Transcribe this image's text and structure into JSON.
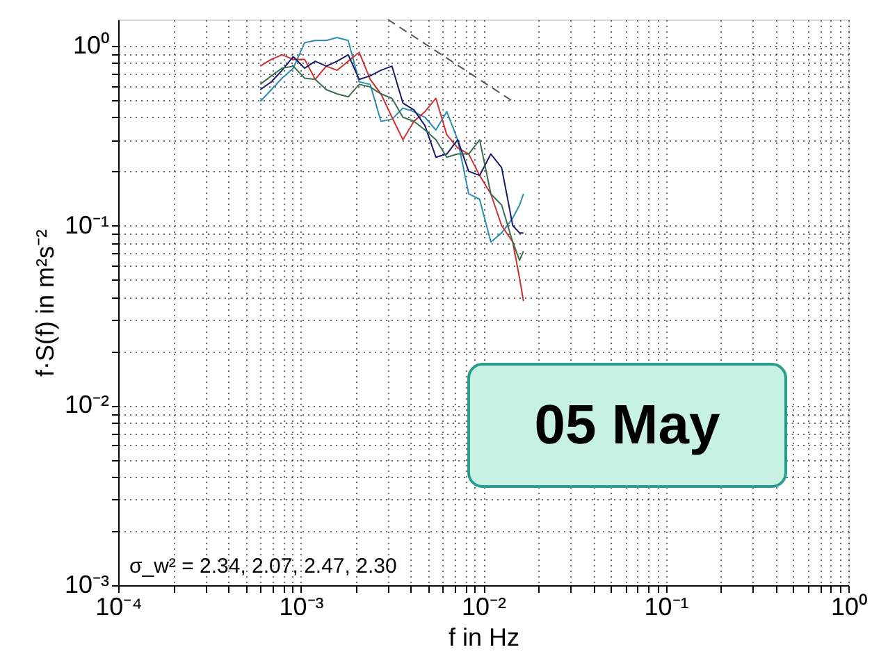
{
  "chart_data": {
    "type": "line",
    "xlabel": "f  in Hz",
    "ylabel": "f·S(f)  in m²s⁻²",
    "annotations": [
      "σ_w² = 2.34, 2.07, 2.47, 2.30",
      "05 May"
    ],
    "log": "xy",
    "grid": true,
    "xlim": [
      0.0001,
      1
    ],
    "ylim": [
      0.001,
      1.4
    ],
    "xticks": [
      {
        "value": 0.0001,
        "label": "10⁻⁴"
      },
      {
        "value": 0.0002,
        "label": null
      },
      {
        "value": 0.0003,
        "label": null
      },
      {
        "value": 0.0004,
        "label": null
      },
      {
        "value": 0.0005,
        "label": null
      },
      {
        "value": 0.0006,
        "label": null
      },
      {
        "value": 0.0007,
        "label": null
      },
      {
        "value": 0.0008,
        "label": null
      },
      {
        "value": 0.0009,
        "label": null
      },
      {
        "value": 0.001,
        "label": "10⁻³"
      },
      {
        "value": 0.002,
        "label": null
      },
      {
        "value": 0.003,
        "label": null
      },
      {
        "value": 0.004,
        "label": null
      },
      {
        "value": 0.005,
        "label": null
      },
      {
        "value": 0.006,
        "label": null
      },
      {
        "value": 0.007,
        "label": null
      },
      {
        "value": 0.008,
        "label": null
      },
      {
        "value": 0.009,
        "label": null
      },
      {
        "value": 0.01,
        "label": "10⁻²"
      },
      {
        "value": 0.02,
        "label": null
      },
      {
        "value": 0.03,
        "label": null
      },
      {
        "value": 0.04,
        "label": null
      },
      {
        "value": 0.05,
        "label": null
      },
      {
        "value": 0.06,
        "label": null
      },
      {
        "value": 0.07,
        "label": null
      },
      {
        "value": 0.08,
        "label": null
      },
      {
        "value": 0.09,
        "label": null
      },
      {
        "value": 0.1,
        "label": "10⁻¹"
      },
      {
        "value": 0.2,
        "label": null
      },
      {
        "value": 0.3,
        "label": null
      },
      {
        "value": 0.4,
        "label": null
      },
      {
        "value": 0.5,
        "label": null
      },
      {
        "value": 0.6,
        "label": null
      },
      {
        "value": 0.7,
        "label": null
      },
      {
        "value": 0.8,
        "label": null
      },
      {
        "value": 0.9,
        "label": null
      },
      {
        "value": 1,
        "label": "10⁰"
      }
    ],
    "yticks": [
      {
        "value": 0.001,
        "label": "10⁻³"
      },
      {
        "value": 0.002,
        "label": null
      },
      {
        "value": 0.003,
        "label": null
      },
      {
        "value": 0.004,
        "label": null
      },
      {
        "value": 0.005,
        "label": null
      },
      {
        "value": 0.006,
        "label": null
      },
      {
        "value": 0.007,
        "label": null
      },
      {
        "value": 0.008,
        "label": null
      },
      {
        "value": 0.009,
        "label": null
      },
      {
        "value": 0.01,
        "label": "10⁻²"
      },
      {
        "value": 0.02,
        "label": null
      },
      {
        "value": 0.03,
        "label": null
      },
      {
        "value": 0.04,
        "label": null
      },
      {
        "value": 0.05,
        "label": null
      },
      {
        "value": 0.06,
        "label": null
      },
      {
        "value": 0.07,
        "label": null
      },
      {
        "value": 0.08,
        "label": null
      },
      {
        "value": 0.09,
        "label": null
      },
      {
        "value": 0.1,
        "label": "10⁻¹"
      },
      {
        "value": 0.2,
        "label": null
      },
      {
        "value": 0.3,
        "label": null
      },
      {
        "value": 0.4,
        "label": null
      },
      {
        "value": 0.5,
        "label": null
      },
      {
        "value": 0.6,
        "label": null
      },
      {
        "value": 0.7,
        "label": null
      },
      {
        "value": 0.8,
        "label": null
      },
      {
        "value": 0.9,
        "label": null
      },
      {
        "value": 1,
        "label": "10⁰"
      }
    ],
    "x": [
      0.0006,
      0.00069,
      0.00079,
      0.00091,
      0.00105,
      0.0012,
      0.00138,
      0.00158,
      0.00182,
      0.00209,
      0.0024,
      0.00275,
      0.00316,
      0.00363,
      0.00417,
      0.00479,
      0.0055,
      0.00631,
      0.00724,
      0.00832,
      0.00955,
      0.011,
      0.0126,
      0.0145,
      0.0158,
      0.0166
    ],
    "series": [
      {
        "color": "#2b8fb3",
        "values": [
          0.49,
          0.57,
          0.66,
          0.75,
          1.04,
          1.07,
          1.07,
          1.11,
          1.07,
          0.63,
          0.61,
          0.38,
          0.39,
          0.45,
          0.43,
          0.4,
          0.34,
          0.43,
          0.3,
          0.15,
          0.14,
          0.081,
          0.091,
          0.11,
          0.13,
          0.15
        ]
      },
      {
        "color": "#d03030",
        "values": [
          0.77,
          0.84,
          0.89,
          0.84,
          0.84,
          0.65,
          0.77,
          0.73,
          0.82,
          0.92,
          0.65,
          0.54,
          0.4,
          0.3,
          0.38,
          0.43,
          0.51,
          0.32,
          0.27,
          0.25,
          0.19,
          0.15,
          0.1,
          0.081,
          0.051,
          0.038
        ]
      },
      {
        "color": "#1a1a6e",
        "values": [
          0.57,
          0.63,
          0.73,
          0.87,
          0.75,
          0.82,
          0.77,
          0.82,
          0.89,
          0.65,
          0.68,
          0.73,
          0.77,
          0.48,
          0.44,
          0.36,
          0.24,
          0.25,
          0.3,
          0.2,
          0.19,
          0.25,
          0.21,
          0.1,
          0.091,
          0.091
        ]
      },
      {
        "color": "#3a6e50",
        "values": [
          0.61,
          0.68,
          0.75,
          0.77,
          0.66,
          0.65,
          0.57,
          0.54,
          0.52,
          0.61,
          0.59,
          0.54,
          0.51,
          0.4,
          0.38,
          0.34,
          0.3,
          0.24,
          0.25,
          0.25,
          0.3,
          0.15,
          0.13,
          0.081,
          0.064,
          0.072
        ]
      },
      {
        "color": "#555555",
        "line_style": "dashed",
        "x": [
          0.003,
          0.015
        ],
        "values": [
          1.4,
          0.48
        ]
      }
    ]
  }
}
